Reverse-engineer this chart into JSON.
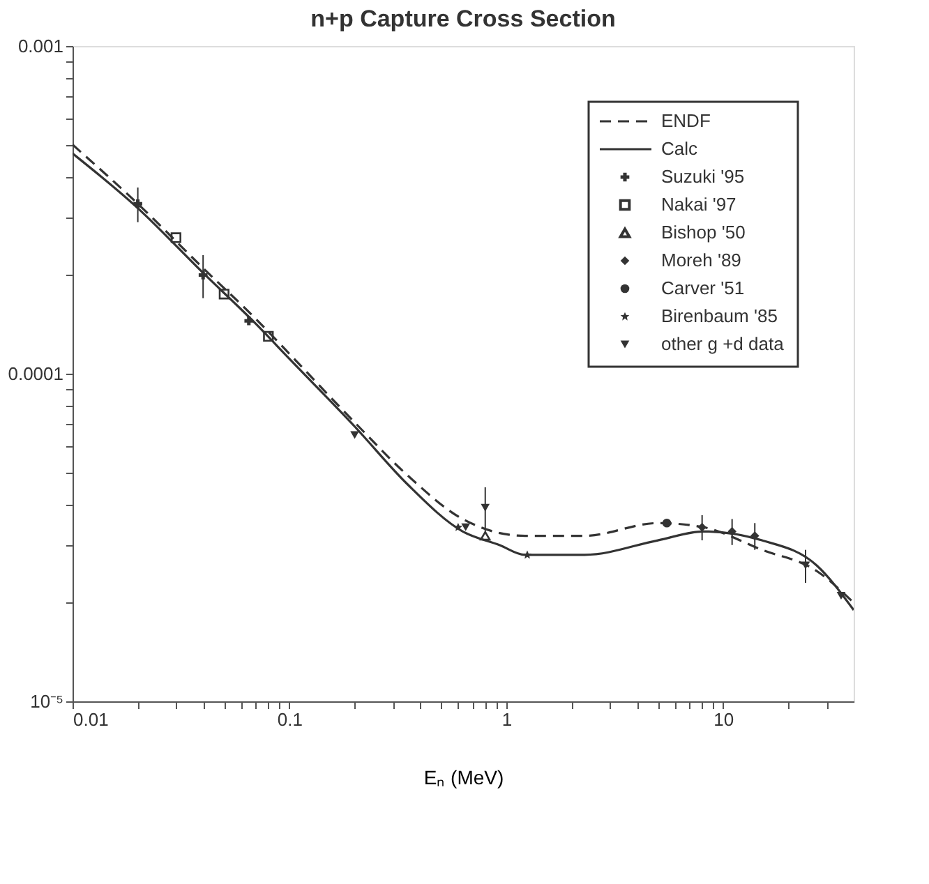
{
  "chart_data": {
    "type": "line",
    "title": "n+p Capture Cross Section",
    "xlabel": "Eₙ (MeV)",
    "xlim": [
      0.01,
      40
    ],
    "ylim": [
      1e-05,
      0.001
    ],
    "log": "xy",
    "grid": false,
    "legend": "top right",
    "xticks": [
      {
        "value": 0.01,
        "label": "0.01"
      },
      {
        "value": 0.02,
        "label": null
      },
      {
        "value": 0.03,
        "label": null
      },
      {
        "value": 0.04,
        "label": null
      },
      {
        "value": 0.05,
        "label": null
      },
      {
        "value": 0.06,
        "label": null
      },
      {
        "value": 0.07,
        "label": null
      },
      {
        "value": 0.08,
        "label": null
      },
      {
        "value": 0.09,
        "label": null
      },
      {
        "value": 0.1,
        "label": "0.1"
      },
      {
        "value": 0.2,
        "label": null
      },
      {
        "value": 0.3,
        "label": null
      },
      {
        "value": 0.4,
        "label": null
      },
      {
        "value": 0.5,
        "label": null
      },
      {
        "value": 0.6,
        "label": null
      },
      {
        "value": 0.7,
        "label": null
      },
      {
        "value": 0.8,
        "label": null
      },
      {
        "value": 0.9,
        "label": null
      },
      {
        "value": 1,
        "label": "1"
      },
      {
        "value": 2,
        "label": null
      },
      {
        "value": 3,
        "label": null
      },
      {
        "value": 4,
        "label": null
      },
      {
        "value": 5,
        "label": null
      },
      {
        "value": 6,
        "label": null
      },
      {
        "value": 7,
        "label": null
      },
      {
        "value": 8,
        "label": null
      },
      {
        "value": 9,
        "label": null
      },
      {
        "value": 10,
        "label": "10"
      },
      {
        "value": 20,
        "label": null
      },
      {
        "value": 30,
        "label": null
      }
    ],
    "yticks": [
      {
        "value": 1e-05,
        "label": "10⁻⁵"
      },
      {
        "value": 2e-05,
        "label": null
      },
      {
        "value": 3e-05,
        "label": null
      },
      {
        "value": 4e-05,
        "label": null
      },
      {
        "value": 5e-05,
        "label": null
      },
      {
        "value": 6e-05,
        "label": null
      },
      {
        "value": 7e-05,
        "label": null
      },
      {
        "value": 8e-05,
        "label": null
      },
      {
        "value": 9e-05,
        "label": null
      },
      {
        "value": 0.0001,
        "label": "0.0001"
      },
      {
        "value": 0.0002,
        "label": null
      },
      {
        "value": 0.0003,
        "label": null
      },
      {
        "value": 0.0004,
        "label": null
      },
      {
        "value": 0.0005,
        "label": null
      },
      {
        "value": 0.0006,
        "label": null
      },
      {
        "value": 0.0007,
        "label": null
      },
      {
        "value": 0.0008,
        "label": null
      },
      {
        "value": 0.0009,
        "label": null
      },
      {
        "value": 0.001,
        "label": "0.001"
      }
    ],
    "series": [
      {
        "name": "ENDF",
        "line_style": "dashed",
        "color": "#333333",
        "x": [
          0.01,
          0.02,
          0.04,
          0.07,
          0.1,
          0.2,
          0.35,
          0.63,
          1.22,
          2.3,
          5.0,
          8.1,
          15.1,
          27,
          40
        ],
        "values": [
          0.0005,
          0.00033,
          0.00021,
          0.000147,
          0.000115,
          7.1e-05,
          4.9e-05,
          3.6e-05,
          3.2e-05,
          3.2e-05,
          3.5e-05,
          3.4e-05,
          2.9e-05,
          2.5e-05,
          2e-05
        ]
      },
      {
        "name": "Calc",
        "line_style": "solid",
        "color": "#333333",
        "x": [
          0.01,
          0.02,
          0.04,
          0.07,
          0.1,
          0.2,
          0.35,
          0.63,
          0.93,
          1.22,
          2.3,
          5.0,
          8.1,
          15.1,
          27,
          40
        ],
        "values": [
          0.00047,
          0.00032,
          0.000203,
          0.000142,
          0.000111,
          6.9e-05,
          4.6e-05,
          3.3e-05,
          3e-05,
          2.8e-05,
          2.8e-05,
          3.1e-05,
          3.3e-05,
          3.1e-05,
          2.6e-05,
          1.9e-05
        ]
      },
      {
        "name": "Suzuki '95",
        "type": "scatter",
        "marker": "cross",
        "color": "#333333",
        "x": [
          0.02,
          0.04,
          0.065
        ],
        "values": [
          0.00033,
          0.0002,
          0.000145
        ],
        "errors": [
          4e-05,
          3e-05,
          null
        ]
      },
      {
        "name": "Nakai '97",
        "type": "scatter",
        "marker": "square",
        "color": "#333333",
        "x": [
          0.03,
          0.05,
          0.08
        ],
        "values": [
          0.00026,
          0.000175,
          0.00013
        ]
      },
      {
        "name": "Bishop '50",
        "type": "scatter",
        "marker": "triangle",
        "color": "#333333",
        "x": [
          0.8
        ],
        "values": [
          3.2e-05
        ]
      },
      {
        "name": "Moreh '89",
        "type": "scatter",
        "marker": "diamond",
        "color": "#333333",
        "x": [
          8,
          11,
          14
        ],
        "values": [
          3.4e-05,
          3.3e-05,
          3.2e-05
        ],
        "errors": [
          3e-06,
          3e-06,
          3e-06
        ]
      },
      {
        "name": "Carver '51",
        "type": "scatter",
        "marker": "circle",
        "color": "#333333",
        "x": [
          5.5
        ],
        "values": [
          3.5e-05
        ]
      },
      {
        "name": "Birenbaum '85",
        "type": "scatter",
        "marker": "star",
        "color": "#333333",
        "x": [
          0.6,
          1.25
        ],
        "values": [
          3.4e-05,
          2.8e-05
        ]
      },
      {
        "name": "other g +d data",
        "type": "scatter",
        "marker": "triangle-down",
        "color": "#333333",
        "x": [
          0.2,
          0.65,
          0.8,
          24,
          35
        ],
        "values": [
          6.5e-05,
          3.4e-05,
          3.9e-05,
          2.6e-05,
          2.1e-05
        ],
        "errors": [
          null,
          null,
          6e-06,
          3e-06,
          null
        ]
      }
    ]
  }
}
